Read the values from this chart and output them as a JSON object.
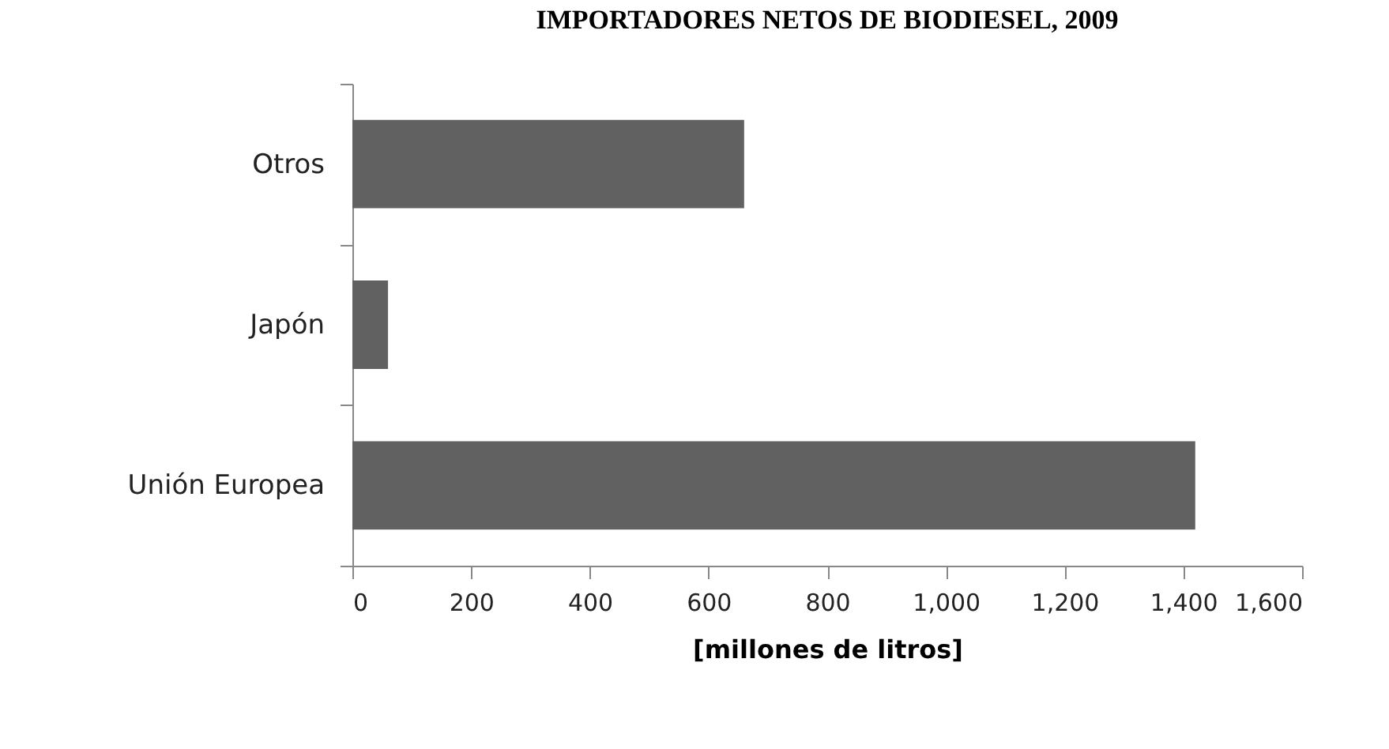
{
  "chart_data": {
    "type": "bar",
    "orientation": "horizontal",
    "title": "IMPORTADORES NETOS DE BIODIESEL, 2009",
    "categories": [
      "Otros",
      "Japón",
      "Unión Europea"
    ],
    "values": [
      660,
      60,
      1420
    ],
    "color": "#616161",
    "xlabel": "[millones de litros]",
    "xlim": [
      0,
      1600
    ],
    "xticks": [
      0,
      200,
      400,
      600,
      800,
      {
        "value": 1000,
        "label": "1,000"
      },
      {
        "value": 1200,
        "label": "1,200"
      },
      {
        "value": 1400,
        "label": "1,400"
      },
      {
        "value": 1600,
        "label": "1,600"
      }
    ],
    "grid": false
  }
}
